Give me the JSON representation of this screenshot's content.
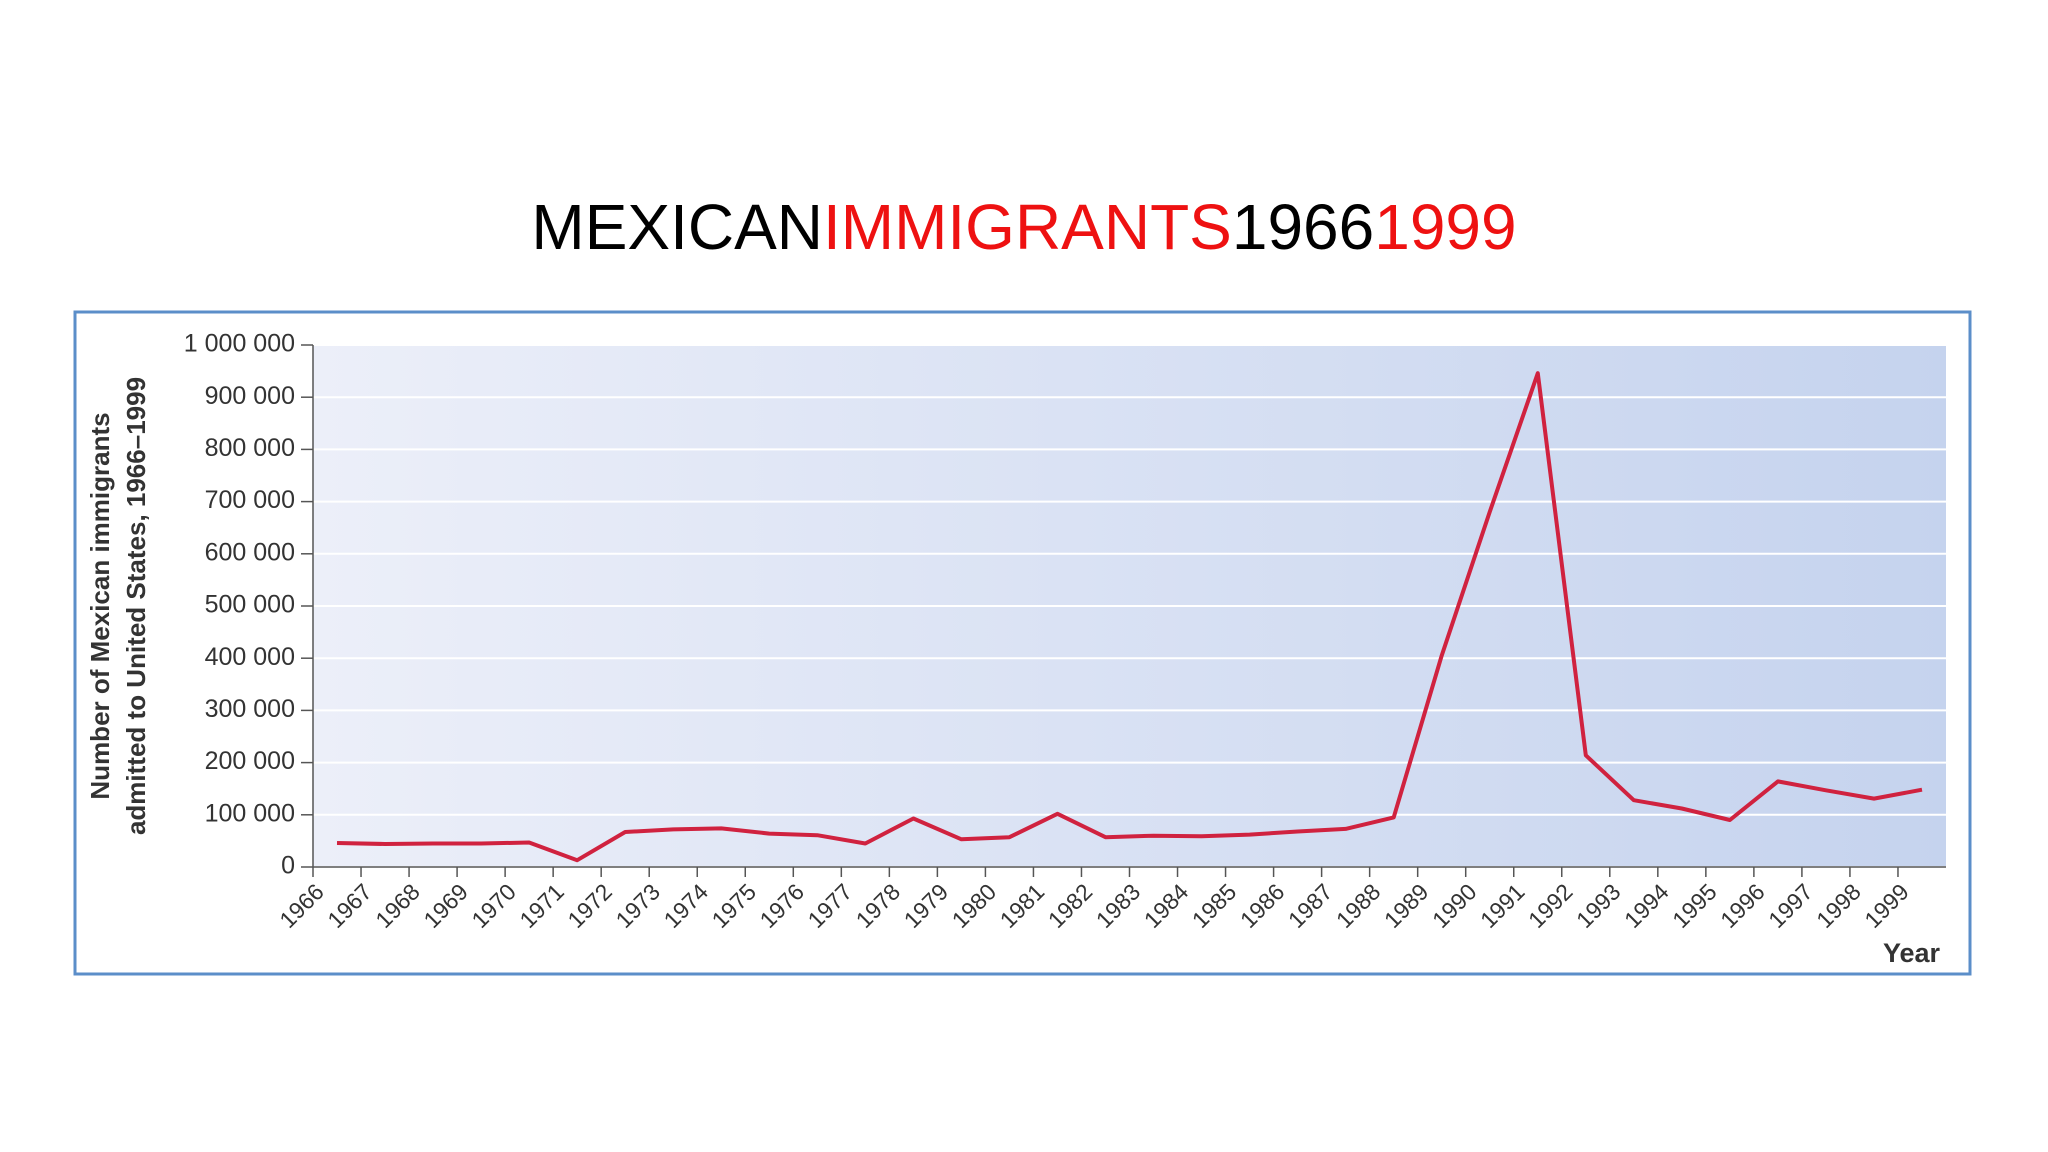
{
  "chart_data": {
    "type": "line",
    "title_parts": [
      {
        "text": "MEXICAN",
        "color": "#000000"
      },
      {
        "text": "IMMIGRANTS",
        "color": "#ee1111"
      },
      {
        "text": "1966",
        "color": "#000000"
      },
      {
        "text": "1999",
        "color": "#ee1111"
      }
    ],
    "y_label_lines": [
      "Number of Mexican immigrants",
      "admitted to United States, 1966–1999"
    ],
    "x_label": "Year",
    "categories": [
      "1966",
      "1967",
      "1968",
      "1969",
      "1970",
      "1971",
      "1972",
      "1973",
      "1974",
      "1975",
      "1976",
      "1977",
      "1978",
      "1979",
      "1980",
      "1981",
      "1982",
      "1983",
      "1984",
      "1985",
      "1986",
      "1987",
      "1988",
      "1989",
      "1990",
      "1991",
      "1992",
      "1993",
      "1994",
      "1995",
      "1996",
      "1997",
      "1998",
      "1999"
    ],
    "series": [
      {
        "color": "#d0223f",
        "values": [
          46000,
          44000,
          45000,
          45000,
          47000,
          13000,
          67000,
          72000,
          74000,
          64000,
          61000,
          45000,
          93000,
          53000,
          57000,
          102000,
          57000,
          60000,
          59000,
          62000,
          68000,
          73000,
          95000,
          405000,
          680000,
          946000,
          214000,
          128000,
          112000,
          90000,
          164000,
          147000,
          131000,
          148000
        ]
      }
    ],
    "ylim": [
      0,
      1000000
    ],
    "yticks": [
      0,
      {
        "value": 100000,
        "label": "100 000"
      },
      {
        "value": 200000,
        "label": "200 000"
      },
      {
        "value": 300000,
        "label": "300 000"
      },
      {
        "value": 400000,
        "label": "400 000"
      },
      {
        "value": 500000,
        "label": "500 000"
      },
      {
        "value": 600000,
        "label": "600 000"
      },
      {
        "value": 700000,
        "label": "700 000"
      },
      {
        "value": 800000,
        "label": "800 000"
      },
      {
        "value": 900000,
        "label": "900 000"
      },
      {
        "value": 1000000,
        "label": "1 000 000"
      }
    ],
    "grid": true
  }
}
